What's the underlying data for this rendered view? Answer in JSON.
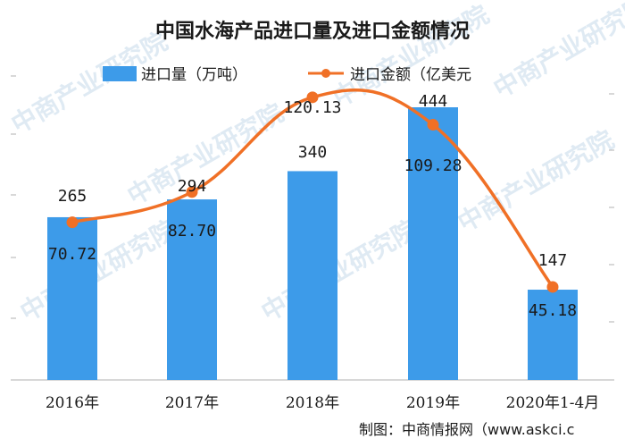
{
  "chart_data": {
    "type": "bar",
    "title": "中国水海产品进口量及进口金额情况",
    "categories": [
      "2016年",
      "2017年",
      "2018年",
      "2019年",
      "2020年1-4月"
    ],
    "series": [
      {
        "name": "进口量（万吨）",
        "type": "bar",
        "color": "#3d9be9",
        "values": [
          265,
          294,
          340,
          444,
          147
        ]
      },
      {
        "name": "进口金额（亿美元",
        "type": "line",
        "color": "#f07026",
        "values": [
          70.72,
          82.7,
          120.13,
          109.28,
          45.18
        ]
      }
    ],
    "bar_labels": [
      "265",
      "294",
      "340",
      "444",
      "147"
    ],
    "line_labels": [
      "70.72",
      "82.70",
      "120.13",
      "109.28",
      "45.18"
    ],
    "legend_position": "top",
    "grid": false
  },
  "source_text": "制图：中商情报网（www.askci.c",
  "watermark": {
    "text": "中商产业研究院"
  }
}
